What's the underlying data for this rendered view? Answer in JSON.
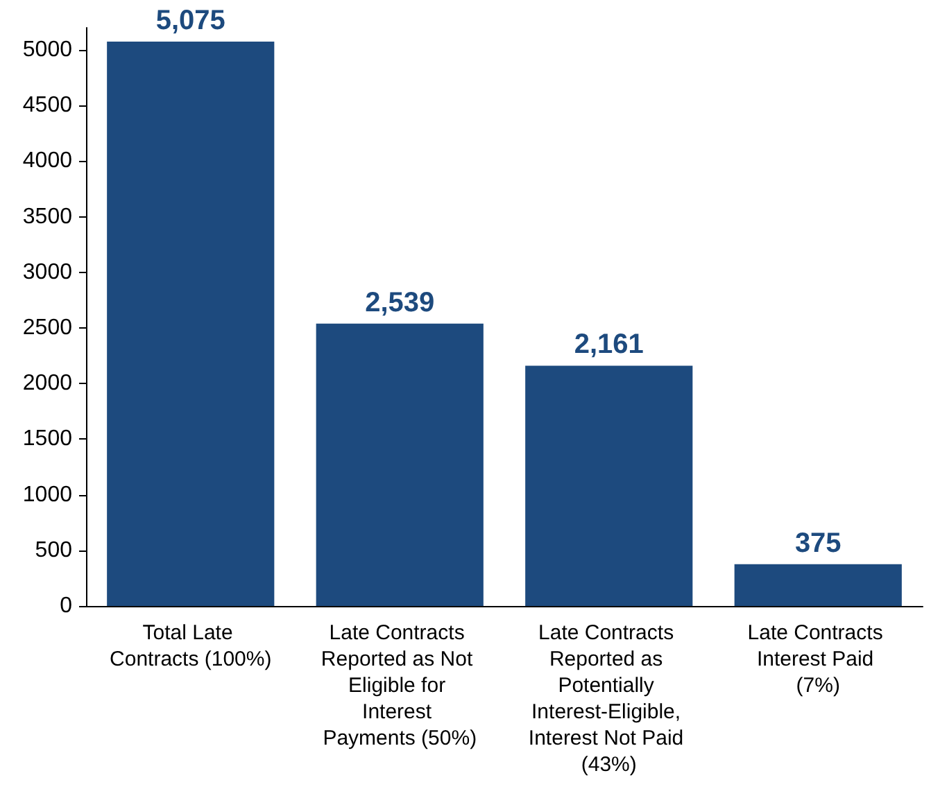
{
  "chart_data": {
    "type": "bar",
    "categories": [
      "Total Late Contracts (100%)",
      "Late Contracts Reported as Not Eligible for Interest Payments (50%)",
      "Late Contracts Reported as Potentially Interest-Eligible, Interest Not Paid (43%)",
      "Late Contracts Interest Paid (7%)"
    ],
    "values": [
      5075,
      2539,
      2161,
      375
    ],
    "value_labels": [
      "5,075",
      "2,539",
      "2,161",
      "375"
    ],
    "color": "#1d4a7e",
    "ylim": [
      0,
      5200
    ],
    "yticks": [
      0,
      500,
      1000,
      1500,
      2000,
      2500,
      3000,
      3500,
      4000,
      4500,
      5000
    ],
    "grid": false
  }
}
